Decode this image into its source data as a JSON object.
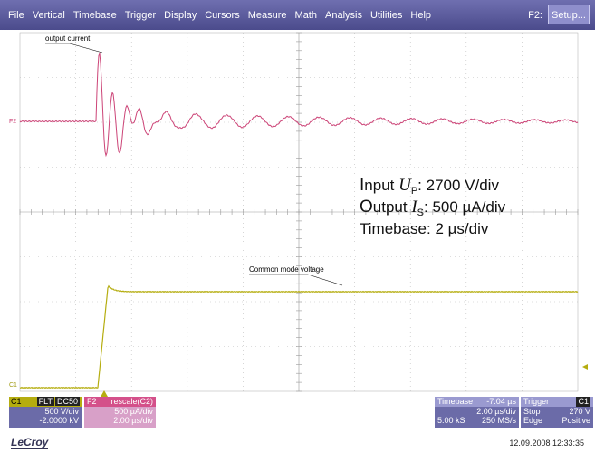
{
  "menu": [
    "File",
    "Vertical",
    "Timebase",
    "Trigger",
    "Display",
    "Cursors",
    "Measure",
    "Math",
    "Analysis",
    "Utilities",
    "Help"
  ],
  "setup_label": "F2:",
  "setup_button": "Setup...",
  "labels": {
    "output_current": "output current",
    "common_mode": "Common mode voltage",
    "f2_marker": "F2",
    "c1_marker": "C1"
  },
  "annotation": [
    {
      "lead": "I",
      "text": "nput ",
      "symbol": "U",
      "sub": "P",
      "rest": ": 2700 V/div"
    },
    {
      "lead": "O",
      "text": "utput ",
      "symbol": "I",
      "sub": "S",
      "rest": ": 500 µA/div"
    },
    {
      "text": "Timebase: 2 µs/div"
    }
  ],
  "c1": {
    "name": "C1",
    "badges": [
      "FLT",
      "DC50"
    ],
    "scale": "500 V/div",
    "offset": "-2.0000 kV"
  },
  "f2": {
    "name": "F2",
    "func": "rescale(C2)",
    "scale": "500 µA/div",
    "time": "2.00 µs/div"
  },
  "timebase": {
    "title": "Timebase",
    "delay": "-7.04 µs",
    "scale": "2.00 µs/div",
    "samples": "5.00 kS",
    "rate": "250 MS/s"
  },
  "trigger": {
    "title": "Trigger",
    "source": "C1",
    "mode": "Stop",
    "level": "270 V",
    "type": "Edge",
    "slope": "Positive"
  },
  "brand": "LeCroy",
  "timestamp": "12.09.2008 12:33:35"
}
